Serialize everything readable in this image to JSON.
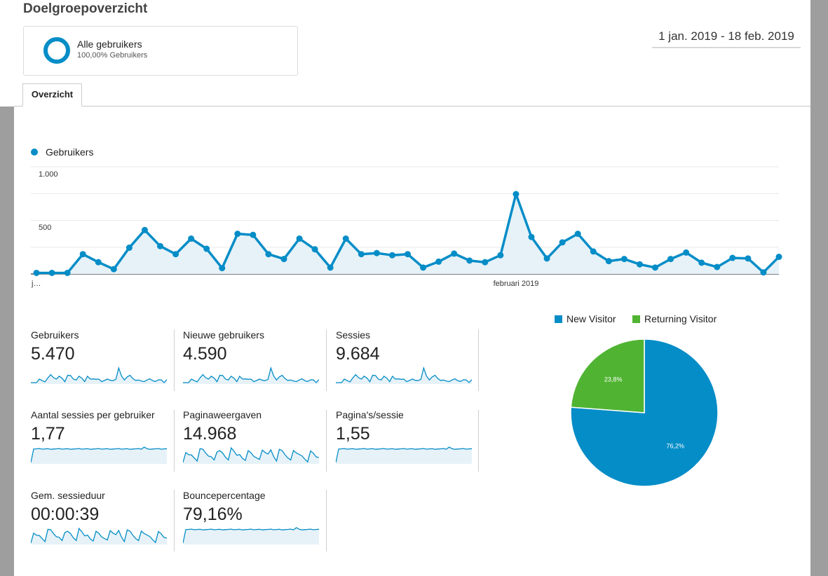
{
  "header": {
    "title": "Doelgroepoverzicht",
    "segment_name": "Alle gebruikers",
    "segment_sub": "100,00% Gebruikers",
    "date_range": "1 jan. 2019 - 18 feb. 2019"
  },
  "tabs": [
    {
      "label": "Overzicht",
      "active": true
    }
  ],
  "colors": {
    "accent": "#058dc7",
    "green": "#50b432",
    "area": "#e6f2f8"
  },
  "chart_data": [
    {
      "type": "area",
      "series": [
        {
          "name": "Gebruikers",
          "values": [
            10,
            10,
            10,
            185,
            110,
            45,
            245,
            410,
            260,
            185,
            330,
            235,
            55,
            375,
            365,
            185,
            140,
            330,
            230,
            60,
            330,
            185,
            195,
            175,
            185,
            60,
            115,
            190,
            125,
            110,
            175,
            745,
            345,
            145,
            295,
            375,
            210,
            120,
            140,
            90,
            60,
            140,
            200,
            105,
            65,
            150,
            145,
            15,
            160
          ]
        }
      ],
      "ylim": [
        0,
        1000
      ],
      "yticks": [
        "1.000",
        "500"
      ],
      "xticks": [
        "j…",
        "februari 2019"
      ],
      "grid": true,
      "legend": "top-left"
    },
    {
      "type": "pie",
      "labels": [
        "New Visitor",
        "Returning Visitor"
      ],
      "values": [
        76.2,
        23.8
      ],
      "value_labels": [
        "76,2%",
        "23,8%"
      ],
      "colors": [
        "#058dc7",
        "#50b432"
      ],
      "legend": "top"
    }
  ],
  "metrics": [
    {
      "label": "Gebruikers",
      "value": "5.470",
      "spark": "users"
    },
    {
      "label": "Nieuwe gebruikers",
      "value": "4.590",
      "spark": "users"
    },
    {
      "label": "Sessies",
      "value": "9.684",
      "spark": "users"
    },
    {
      "label": "Aantal sessies per gebruiker",
      "value": "1,77",
      "spark": "flat"
    },
    {
      "label": "Paginaweergaven",
      "value": "14.968",
      "spark": "noisy"
    },
    {
      "label": "Pagina's/sessie",
      "value": "1,55",
      "spark": "flat"
    },
    {
      "label": "Gem. sessieduur",
      "value": "00:00:39",
      "spark": "noisy"
    },
    {
      "label": "Bouncepercentage",
      "value": "79,16%",
      "spark": "flat"
    }
  ]
}
